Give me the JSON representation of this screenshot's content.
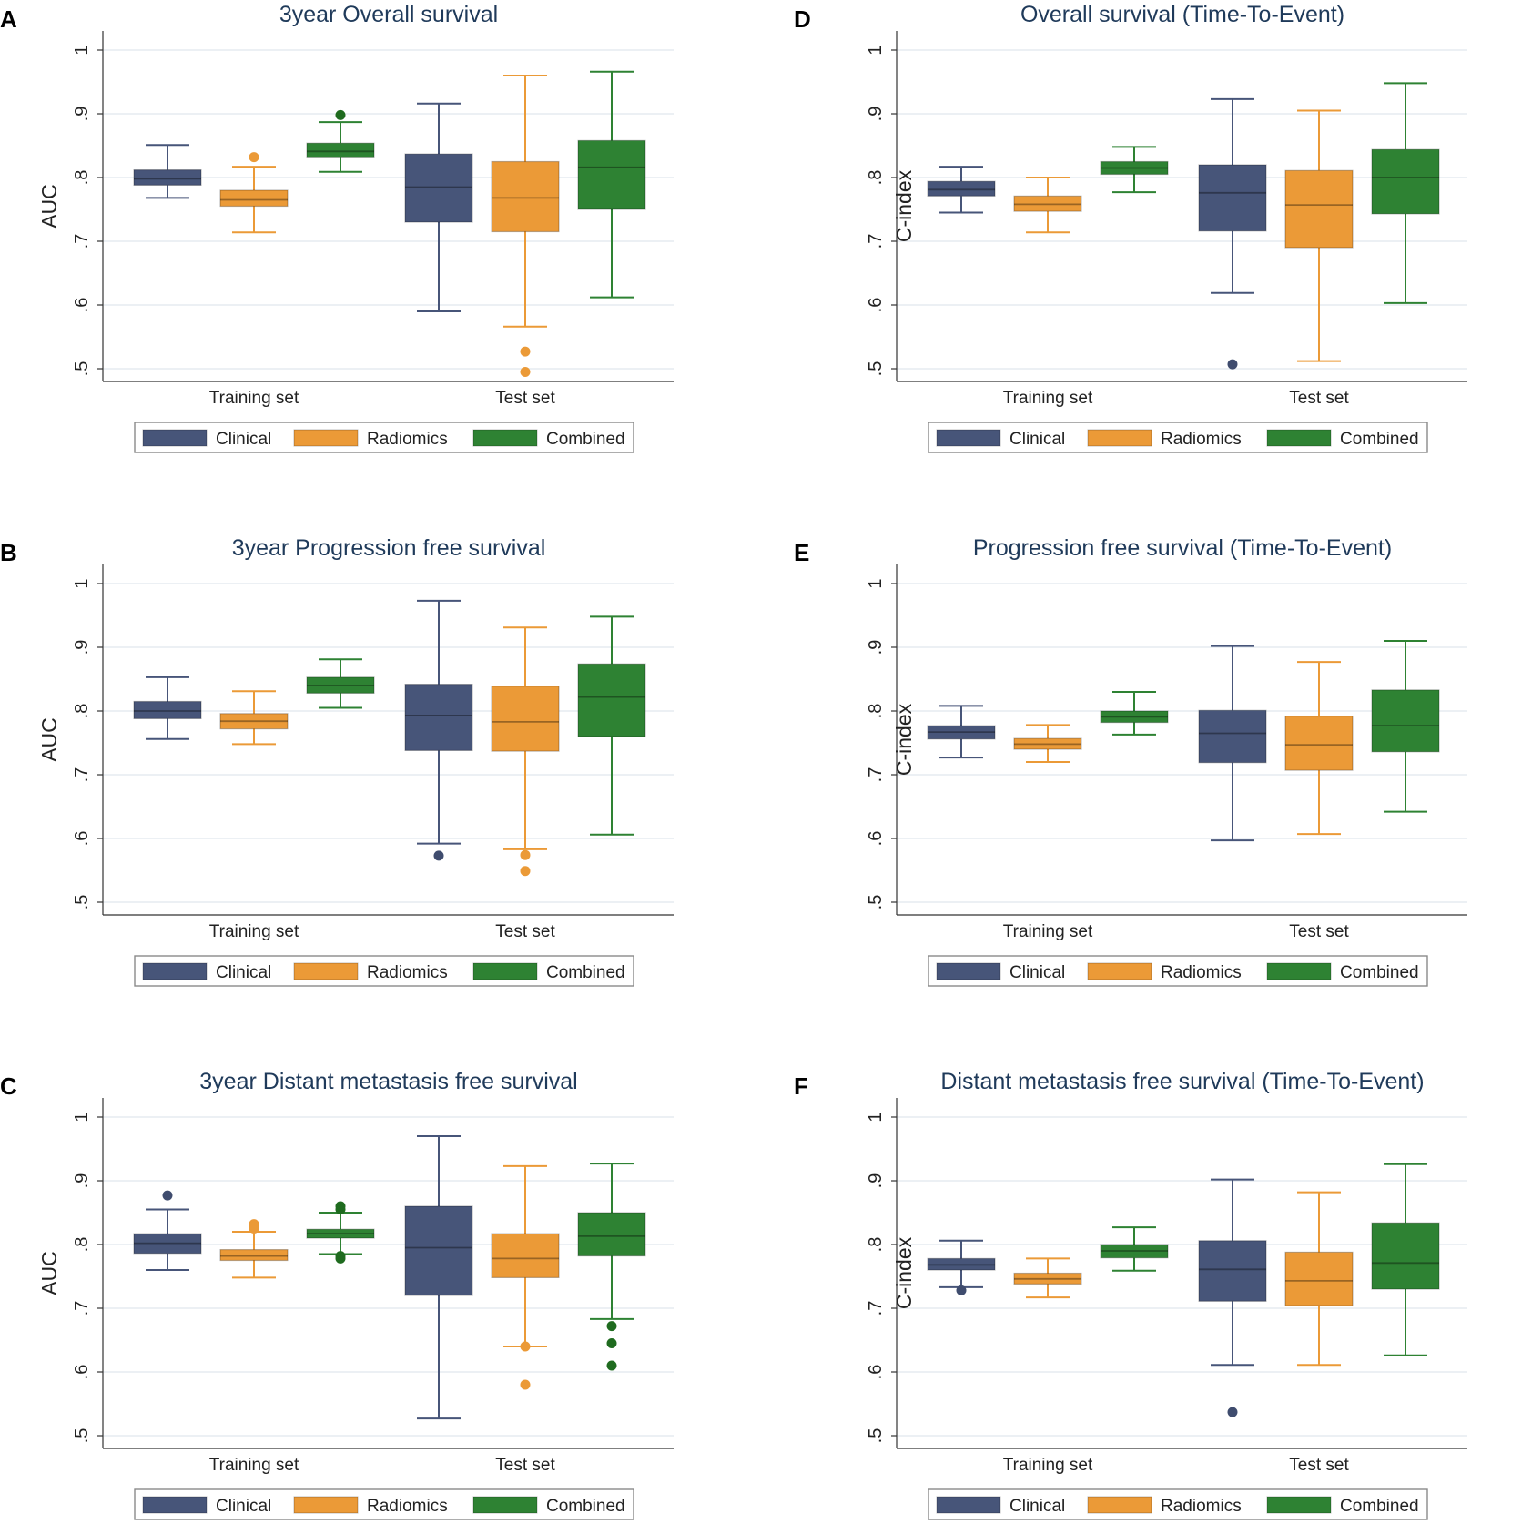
{
  "colors": {
    "clinical": "#475579",
    "radiomics": "#EB9A37",
    "combined": "#2E8233",
    "clinical_outlier": "#3F4C6E",
    "radiomics_outlier": "#EB9A37",
    "combined_outlier": "#1F6B1F",
    "grid": "#e6ebf0",
    "axis": "#333333",
    "title": "#1f3a5a"
  },
  "legend": {
    "clinical": "Clinical",
    "radiomics": "Radiomics",
    "combined": "Combined"
  },
  "chart_data": [
    {
      "panel": "A",
      "type": "box",
      "title": "3year Overall survival",
      "ylabel": "AUC",
      "categories": [
        "Training set",
        "Test set"
      ],
      "yticks": [
        ".5",
        ".6",
        ".7",
        ".8",
        ".9",
        "1"
      ],
      "ylim": [
        0.48,
        1.03
      ],
      "series": [
        {
          "name": "Clinical",
          "color_key": "clinical",
          "boxes": [
            {
              "min": 0.768,
              "q1": 0.788,
              "median": 0.798,
              "q3": 0.812,
              "max": 0.851,
              "outliers": []
            },
            {
              "min": 0.59,
              "q1": 0.73,
              "median": 0.785,
              "q3": 0.837,
              "max": 0.916,
              "outliers": []
            }
          ]
        },
        {
          "name": "Radiomics",
          "color_key": "radiomics",
          "boxes": [
            {
              "min": 0.714,
              "q1": 0.755,
              "median": 0.765,
              "q3": 0.78,
              "max": 0.817,
              "outliers": [
                0.832
              ]
            },
            {
              "min": 0.566,
              "q1": 0.715,
              "median": 0.768,
              "q3": 0.825,
              "max": 0.96,
              "outliers": [
                0.527,
                0.495
              ]
            }
          ]
        },
        {
          "name": "Combined",
          "color_key": "combined",
          "boxes": [
            {
              "min": 0.809,
              "q1": 0.831,
              "median": 0.841,
              "q3": 0.854,
              "max": 0.887,
              "outliers": [
                0.898
              ]
            },
            {
              "min": 0.612,
              "q1": 0.75,
              "median": 0.816,
              "q3": 0.858,
              "max": 0.966,
              "outliers": []
            }
          ]
        }
      ]
    },
    {
      "panel": "B",
      "type": "box",
      "title": "3year Progression free survival",
      "ylabel": "AUC",
      "categories": [
        "Training set",
        "Test set"
      ],
      "yticks": [
        ".5",
        ".6",
        ".7",
        ".8",
        ".9",
        "1"
      ],
      "ylim": [
        0.48,
        1.03
      ],
      "series": [
        {
          "name": "Clinical",
          "color_key": "clinical",
          "boxes": [
            {
              "min": 0.756,
              "q1": 0.788,
              "median": 0.8,
              "q3": 0.815,
              "max": 0.853,
              "outliers": []
            },
            {
              "min": 0.592,
              "q1": 0.738,
              "median": 0.793,
              "q3": 0.842,
              "max": 0.973,
              "outliers": [
                0.573
              ]
            }
          ]
        },
        {
          "name": "Radiomics",
          "color_key": "radiomics",
          "boxes": [
            {
              "min": 0.748,
              "q1": 0.772,
              "median": 0.784,
              "q3": 0.796,
              "max": 0.831,
              "outliers": []
            },
            {
              "min": 0.583,
              "q1": 0.737,
              "median": 0.783,
              "q3": 0.839,
              "max": 0.931,
              "outliers": [
                0.574,
                0.549
              ]
            }
          ]
        },
        {
          "name": "Combined",
          "color_key": "combined",
          "boxes": [
            {
              "min": 0.805,
              "q1": 0.828,
              "median": 0.84,
              "q3": 0.853,
              "max": 0.881,
              "outliers": []
            },
            {
              "min": 0.606,
              "q1": 0.76,
              "median": 0.822,
              "q3": 0.874,
              "max": 0.948,
              "outliers": []
            }
          ]
        }
      ]
    },
    {
      "panel": "C",
      "type": "box",
      "title": "3year Distant metastasis free survival",
      "ylabel": "AUC",
      "categories": [
        "Training set",
        "Test set"
      ],
      "yticks": [
        ".5",
        ".6",
        ".7",
        ".8",
        ".9",
        "1"
      ],
      "ylim": [
        0.48,
        1.03
      ],
      "series": [
        {
          "name": "Clinical",
          "color_key": "clinical",
          "boxes": [
            {
              "min": 0.76,
              "q1": 0.786,
              "median": 0.802,
              "q3": 0.817,
              "max": 0.855,
              "outliers": [
                0.877
              ]
            },
            {
              "min": 0.527,
              "q1": 0.72,
              "median": 0.795,
              "q3": 0.86,
              "max": 0.97,
              "outliers": []
            }
          ]
        },
        {
          "name": "Radiomics",
          "color_key": "radiomics",
          "boxes": [
            {
              "min": 0.748,
              "q1": 0.775,
              "median": 0.782,
              "q3": 0.792,
              "max": 0.82,
              "outliers": [
                0.832,
                0.828,
                0.825
              ]
            },
            {
              "min": 0.64,
              "q1": 0.748,
              "median": 0.778,
              "q3": 0.817,
              "max": 0.923,
              "outliers": [
                0.64,
                0.58
              ]
            }
          ]
        },
        {
          "name": "Combined",
          "color_key": "combined",
          "boxes": [
            {
              "min": 0.785,
              "q1": 0.81,
              "median": 0.817,
              "q3": 0.824,
              "max": 0.85,
              "outliers": [
                0.86,
                0.855,
                0.782,
                0.778
              ]
            },
            {
              "min": 0.683,
              "q1": 0.782,
              "median": 0.813,
              "q3": 0.85,
              "max": 0.927,
              "outliers": [
                0.672,
                0.645,
                0.61
              ]
            }
          ]
        }
      ]
    },
    {
      "panel": "D",
      "type": "box",
      "title": "Overall survival (Time-To-Event)",
      "ylabel": "C-index",
      "categories": [
        "Training set",
        "Test set"
      ],
      "yticks": [
        ".5",
        ".6",
        ".7",
        ".8",
        ".9",
        "1"
      ],
      "ylim": [
        0.48,
        1.03
      ],
      "series": [
        {
          "name": "Clinical",
          "color_key": "clinical",
          "boxes": [
            {
              "min": 0.745,
              "q1": 0.771,
              "median": 0.781,
              "q3": 0.794,
              "max": 0.817,
              "outliers": []
            },
            {
              "min": 0.619,
              "q1": 0.716,
              "median": 0.776,
              "q3": 0.82,
              "max": 0.923,
              "outliers": [
                0.507
              ]
            }
          ]
        },
        {
          "name": "Radiomics",
          "color_key": "radiomics",
          "boxes": [
            {
              "min": 0.714,
              "q1": 0.747,
              "median": 0.758,
              "q3": 0.771,
              "max": 0.8,
              "outliers": []
            },
            {
              "min": 0.512,
              "q1": 0.69,
              "median": 0.757,
              "q3": 0.811,
              "max": 0.905,
              "outliers": []
            }
          ]
        },
        {
          "name": "Combined",
          "color_key": "combined",
          "boxes": [
            {
              "min": 0.777,
              "q1": 0.805,
              "median": 0.815,
              "q3": 0.825,
              "max": 0.848,
              "outliers": []
            },
            {
              "min": 0.603,
              "q1": 0.743,
              "median": 0.8,
              "q3": 0.844,
              "max": 0.948,
              "outliers": []
            }
          ]
        }
      ]
    },
    {
      "panel": "E",
      "type": "box",
      "title": "Progression free survival (Time-To-Event)",
      "ylabel": "C-index",
      "categories": [
        "Training set",
        "Test set"
      ],
      "yticks": [
        ".5",
        ".6",
        ".7",
        ".8",
        ".9",
        "1"
      ],
      "ylim": [
        0.48,
        1.03
      ],
      "series": [
        {
          "name": "Clinical",
          "color_key": "clinical",
          "boxes": [
            {
              "min": 0.727,
              "q1": 0.756,
              "median": 0.767,
              "q3": 0.777,
              "max": 0.808,
              "outliers": []
            },
            {
              "min": 0.597,
              "q1": 0.719,
              "median": 0.765,
              "q3": 0.801,
              "max": 0.902,
              "outliers": []
            }
          ]
        },
        {
          "name": "Radiomics",
          "color_key": "radiomics",
          "boxes": [
            {
              "min": 0.72,
              "q1": 0.74,
              "median": 0.748,
              "q3": 0.757,
              "max": 0.778,
              "outliers": []
            },
            {
              "min": 0.607,
              "q1": 0.707,
              "median": 0.747,
              "q3": 0.792,
              "max": 0.877,
              "outliers": []
            }
          ]
        },
        {
          "name": "Combined",
          "color_key": "combined",
          "boxes": [
            {
              "min": 0.763,
              "q1": 0.782,
              "median": 0.791,
              "q3": 0.8,
              "max": 0.83,
              "outliers": []
            },
            {
              "min": 0.642,
              "q1": 0.736,
              "median": 0.777,
              "q3": 0.833,
              "max": 0.91,
              "outliers": []
            }
          ]
        }
      ]
    },
    {
      "panel": "F",
      "type": "box",
      "title": "Distant metastasis free survival (Time-To-Event)",
      "ylabel": "C-index",
      "categories": [
        "Training set",
        "Test set"
      ],
      "yticks": [
        ".5",
        ".6",
        ".7",
        ".8",
        ".9",
        "1"
      ],
      "ylim": [
        0.48,
        1.03
      ],
      "series": [
        {
          "name": "Clinical",
          "color_key": "clinical",
          "boxes": [
            {
              "min": 0.733,
              "q1": 0.76,
              "median": 0.768,
              "q3": 0.778,
              "max": 0.806,
              "outliers": [
                0.728
              ]
            },
            {
              "min": 0.611,
              "q1": 0.711,
              "median": 0.761,
              "q3": 0.806,
              "max": 0.902,
              "outliers": [
                0.537
              ]
            }
          ]
        },
        {
          "name": "Radiomics",
          "color_key": "radiomics",
          "boxes": [
            {
              "min": 0.717,
              "q1": 0.738,
              "median": 0.746,
              "q3": 0.755,
              "max": 0.778,
              "outliers": []
            },
            {
              "min": 0.611,
              "q1": 0.704,
              "median": 0.743,
              "q3": 0.788,
              "max": 0.882,
              "outliers": []
            }
          ]
        },
        {
          "name": "Combined",
          "color_key": "combined",
          "boxes": [
            {
              "min": 0.759,
              "q1": 0.779,
              "median": 0.79,
              "q3": 0.8,
              "max": 0.827,
              "outliers": []
            },
            {
              "min": 0.626,
              "q1": 0.73,
              "median": 0.771,
              "q3": 0.834,
              "max": 0.926,
              "outliers": []
            }
          ]
        }
      ]
    }
  ]
}
